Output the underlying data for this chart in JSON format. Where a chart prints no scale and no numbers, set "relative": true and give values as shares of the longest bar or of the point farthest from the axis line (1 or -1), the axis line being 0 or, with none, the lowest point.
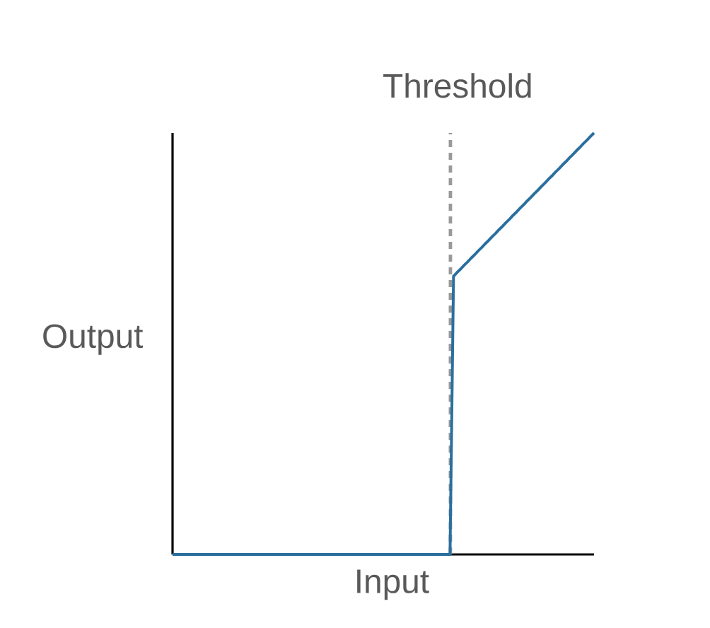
{
  "chart_data": {
    "type": "line",
    "xlabel": "Input",
    "ylabel": "Output",
    "relative": true,
    "categories": [
      null,
      null,
      null,
      null,
      null,
      null,
      null,
      null,
      null,
      null,
      null,
      null,
      null,
      null,
      null,
      null,
      null,
      null,
      null,
      null,
      null,
      null,
      null,
      null,
      null,
      null,
      null,
      null,
      null,
      null,
      null,
      null,
      null,
      null,
      null,
      null,
      null,
      null,
      null,
      null,
      null,
      null,
      null,
      null,
      null,
      null,
      null,
      null,
      null,
      null,
      null,
      null,
      null,
      null,
      null,
      null,
      null,
      null,
      null,
      null,
      null,
      null,
      null,
      null,
      null,
      null,
      null,
      null,
      null,
      null,
      null,
      null,
      null,
      null,
      null,
      null,
      null,
      null,
      null,
      null,
      null,
      null,
      null,
      null,
      null,
      null,
      null,
      null,
      null,
      null,
      null,
      null,
      null,
      null,
      null,
      null,
      null,
      null,
      null,
      null,
      null,
      null,
      null,
      null,
      null,
      null,
      null,
      null,
      null,
      null,
      null,
      null,
      null,
      null,
      null,
      null,
      null,
      null,
      null,
      null,
      null
    ],
    "series": [
      {
        "color": "#2a6f9e",
        "values": [
          0,
          0,
          0,
          0,
          0,
          0,
          0,
          0,
          0,
          0,
          0,
          0,
          0,
          0,
          0,
          0,
          0,
          0,
          0,
          0,
          0,
          0,
          0,
          0,
          0,
          0,
          0,
          0,
          0,
          0,
          0,
          0,
          0,
          0,
          0,
          0,
          0,
          0,
          0,
          0,
          0,
          0,
          0,
          0,
          0,
          0,
          0,
          0,
          0,
          0,
          0,
          0,
          0,
          0,
          0,
          0,
          0,
          0,
          0,
          0,
          0,
          0,
          0,
          0,
          0,
          0,
          0,
          0,
          0,
          0,
          0,
          0,
          0,
          0,
          0,
          0,
          0,
          0,
          0,
          0,
          0.66,
          0.669,
          0.677,
          0.686,
          0.694,
          0.703,
          0.711,
          0.72,
          0.728,
          0.737,
          0.745,
          0.754,
          0.762,
          0.771,
          0.779,
          0.788,
          0.796,
          0.805,
          0.813,
          0.822,
          0.83,
          0.839,
          0.847,
          0.856,
          0.864,
          0.873,
          0.881,
          0.89,
          0.898,
          0.907,
          0.915,
          0.924,
          0.932,
          0.941,
          0.949,
          0.958,
          0.966,
          0.975,
          0.983,
          0.992,
          1
        ]
      }
    ],
    "annotations": [
      "Threshold"
    ]
  }
}
